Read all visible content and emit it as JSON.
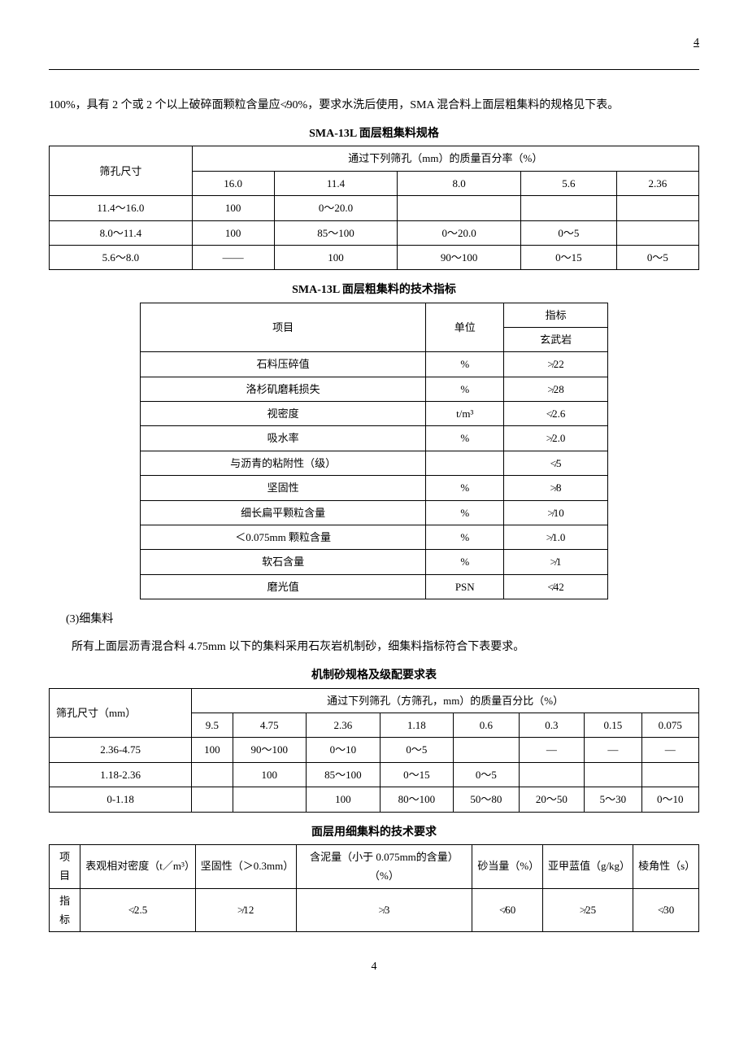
{
  "header": {
    "page_number_top": "4"
  },
  "intro_para": "100%，具有 2 个或 2 个以上破碎面颗粒含量应≮90%，要求水洗后使用，SMA 混合料上面层粗集料的规格见下表。",
  "table1": {
    "title": "SMA-13L 面层粗集料规格",
    "row_header_label": "筛孔尺寸",
    "span_header": "通过下列筛孔（mm）的质量百分率（%）",
    "cols": [
      "16.0",
      "11.4",
      "8.0",
      "5.6",
      "2.36"
    ],
    "rows": [
      {
        "size": "11.4～16.0",
        "cells": [
          "100",
          "0～20.0",
          "",
          "",
          ""
        ]
      },
      {
        "size": "8.0～11.4",
        "cells": [
          "100",
          "85～100",
          "0～20.0",
          "0～5",
          ""
        ]
      },
      {
        "size": "5.6～8.0",
        "cells": "emdash_row"
      }
    ],
    "row3_cells": [
      "——",
      "100",
      "90～100",
      "0～15",
      "0～5"
    ]
  },
  "table2": {
    "title": "SMA-13L 面层粗集料的技术指标",
    "col_item": "项目",
    "col_unit": "单位",
    "col_spec": "指标",
    "col_spec_sub": "玄武岩",
    "rows": [
      {
        "item": "石料压碎值",
        "unit": "%",
        "spec": "≯22"
      },
      {
        "item": "洛杉矶磨耗损失",
        "unit": "%",
        "spec": "≯28"
      },
      {
        "item": "视密度",
        "unit": "t/m³",
        "spec": "≮2.6"
      },
      {
        "item": "吸水率",
        "unit": "%",
        "spec": "≯2.0"
      },
      {
        "item": "与沥青的粘附性（级）",
        "unit": "",
        "spec": "≮5"
      },
      {
        "item": "坚固性",
        "unit": "%",
        "spec": "≯8"
      },
      {
        "item": "细长扁平颗粒含量",
        "unit": "%",
        "spec": "≯10"
      },
      {
        "item": "＜0.075mm 颗粒含量",
        "unit": "%",
        "spec": "≯1.0"
      },
      {
        "item": "软石含量",
        "unit": "%",
        "spec": "≯1"
      },
      {
        "item": "磨光值",
        "unit": "PSN",
        "spec": "≮42"
      }
    ]
  },
  "section3_label": "(3)细集料",
  "section3_para": "所有上面层沥青混合料 4.75mm 以下的集料采用石灰岩机制砂，细集料指标符合下表要求。",
  "table3": {
    "title": "机制砂规格及级配要求表",
    "row_header_label": "筛孔尺寸（mm）",
    "span_header": "通过下列筛孔（方筛孔，mm）的质量百分比（%）",
    "cols": [
      "9.5",
      "4.75",
      "2.36",
      "1.18",
      "0.6",
      "0.3",
      "0.15",
      "0.075"
    ],
    "rows": [
      {
        "size": "2.36-4.75",
        "cells": [
          "100",
          "90～100",
          "0～10",
          "0～5",
          "",
          "—",
          "—",
          "—"
        ]
      },
      {
        "size": "1.18-2.36",
        "cells": [
          "",
          "100",
          "85～100",
          "0～15",
          "0～5",
          "",
          "",
          ""
        ]
      },
      {
        "size": "0-1.18",
        "cells": [
          "",
          "",
          "100",
          "80～100",
          "50～80",
          "20～50",
          "5～30",
          "0～10"
        ]
      }
    ]
  },
  "table4": {
    "title": "面层用细集料的技术要求",
    "headers": [
      "项目",
      "表观相对密度（t／m³）",
      "坚固性（＞0.3mm）",
      "含泥量（小于 0.075mm的含量）（%）",
      "砂当量（%）",
      "亚甲蓝值（g/kg）",
      "棱角性（s）"
    ],
    "row_label": "指标",
    "row_values": [
      "≮2.5",
      "≯12",
      "≯3",
      "≮60",
      "≯25",
      "≮30"
    ]
  },
  "footer": {
    "page_number_bottom": "4"
  }
}
